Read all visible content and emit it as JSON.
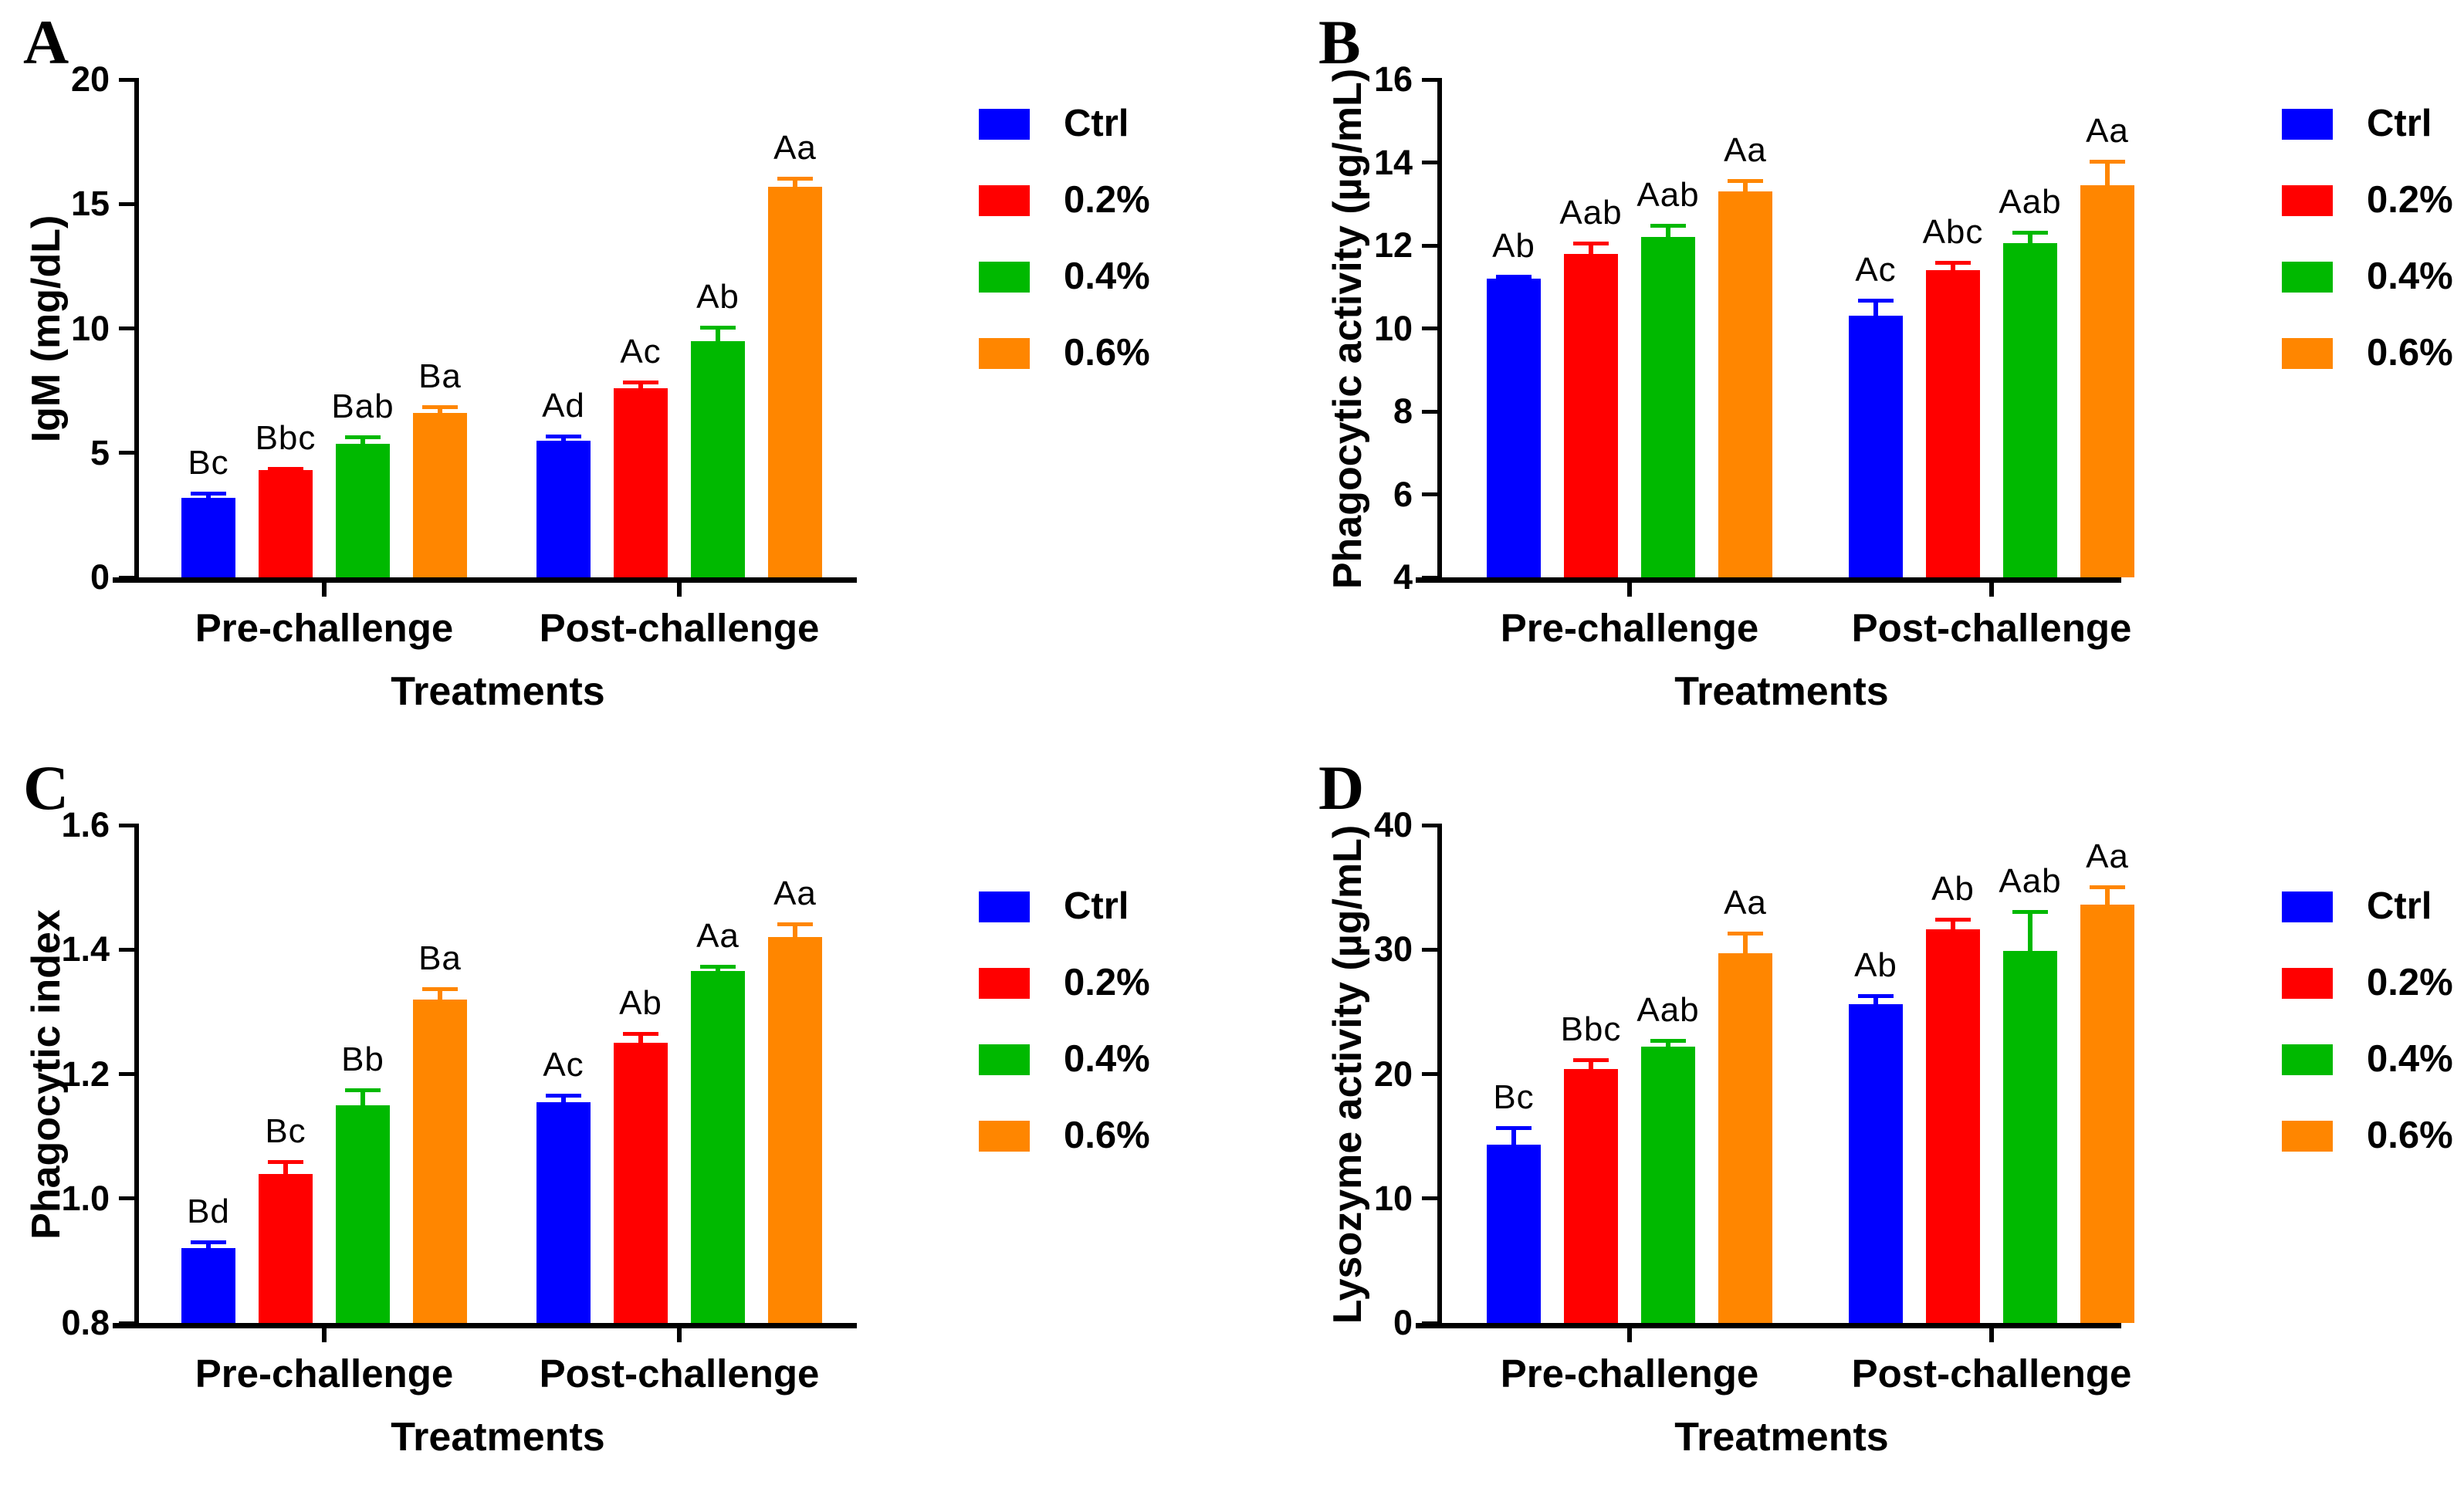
{
  "figure_colors": {
    "ctrl_blue": "#0000FF",
    "pct02_red": "#FF0000",
    "pct04_green": "#00B900",
    "pct06_orange": "#FF8600",
    "axis_black": "#000000"
  },
  "chart_data": [
    {
      "panel": "A",
      "type": "bar",
      "ylabel": "IgM (mg/dL)",
      "xlabel": "Treatments",
      "ylim": [
        0,
        20
      ],
      "yticks": [
        {
          "value": 0,
          "label": "0"
        },
        {
          "value": 5,
          "label": "5"
        },
        {
          "value": 10,
          "label": "10"
        },
        {
          "value": 15,
          "label": "15"
        },
        {
          "value": 20,
          "label": "20"
        }
      ],
      "categories": [
        "Pre-challenge",
        "Post-challenge"
      ],
      "grid": false,
      "legend_position": "right",
      "series": [
        {
          "name": "Ctrl",
          "color": "#0000FF",
          "values": [
            3.2,
            5.5
          ],
          "errors": [
            0.25,
            0.25
          ],
          "sig_labels": [
            "Bc",
            "Ad"
          ]
        },
        {
          "name": "0.2%",
          "color": "#FF0000",
          "values": [
            4.3,
            7.6
          ],
          "errors": [
            0.15,
            0.3
          ],
          "sig_labels": [
            "Bbc",
            "Ac"
          ]
        },
        {
          "name": "0.4%",
          "color": "#00B900",
          "values": [
            5.35,
            9.5
          ],
          "errors": [
            0.35,
            0.6
          ],
          "sig_labels": [
            "Bab",
            "Ab"
          ]
        },
        {
          "name": "0.6%",
          "color": "#FF8600",
          "values": [
            6.6,
            15.7
          ],
          "errors": [
            0.3,
            0.4
          ],
          "sig_labels": [
            "Ba",
            "Aa"
          ]
        }
      ]
    },
    {
      "panel": "B",
      "type": "bar",
      "ylabel": "Phagocytic activity (µg/mL)",
      "xlabel": "Treatments",
      "ylim": [
        4,
        16
      ],
      "yticks": [
        {
          "value": 4,
          "label": "4"
        },
        {
          "value": 6,
          "label": "6"
        },
        {
          "value": 8,
          "label": "8"
        },
        {
          "value": 10,
          "label": "10"
        },
        {
          "value": 12,
          "label": "12"
        },
        {
          "value": 14,
          "label": "14"
        },
        {
          "value": 16,
          "label": "16"
        }
      ],
      "categories": [
        "Pre-challenge",
        "Post-challenge"
      ],
      "grid": false,
      "legend_position": "right",
      "series": [
        {
          "name": "Ctrl",
          "color": "#0000FF",
          "values": [
            11.2,
            10.3
          ],
          "errors": [
            0.1,
            0.42
          ],
          "sig_labels": [
            "Ab",
            "Ac"
          ]
        },
        {
          "name": "0.2%",
          "color": "#FF0000",
          "values": [
            11.8,
            11.4
          ],
          "errors": [
            0.3,
            0.22
          ],
          "sig_labels": [
            "Aab",
            "Abc"
          ]
        },
        {
          "name": "0.4%",
          "color": "#00B900",
          "values": [
            12.2,
            12.05
          ],
          "errors": [
            0.33,
            0.3
          ],
          "sig_labels": [
            "Aab",
            "Aab"
          ]
        },
        {
          "name": "0.6%",
          "color": "#FF8600",
          "values": [
            13.3,
            13.45
          ],
          "errors": [
            0.3,
            0.62
          ],
          "sig_labels": [
            "Aa",
            "Aa"
          ]
        }
      ]
    },
    {
      "panel": "C",
      "type": "bar",
      "ylabel": "Phagocytic index",
      "xlabel": "Treatments",
      "ylim": [
        0.8,
        1.6
      ],
      "yticks": [
        {
          "value": 0.8,
          "label": "0.8"
        },
        {
          "value": 1.0,
          "label": "1.0"
        },
        {
          "value": 1.2,
          "label": "1.2"
        },
        {
          "value": 1.4,
          "label": "1.4"
        },
        {
          "value": 1.6,
          "label": "1.6"
        }
      ],
      "categories": [
        "Pre-challenge",
        "Post-challenge"
      ],
      "grid": false,
      "legend_position": "right",
      "series": [
        {
          "name": "Ctrl",
          "color": "#0000FF",
          "values": [
            0.92,
            1.155
          ],
          "errors": [
            0.013,
            0.013
          ],
          "sig_labels": [
            "Bd",
            "Ac"
          ]
        },
        {
          "name": "0.2%",
          "color": "#FF0000",
          "values": [
            1.04,
            1.25
          ],
          "errors": [
            0.022,
            0.017
          ],
          "sig_labels": [
            "Bc",
            "Ab"
          ]
        },
        {
          "name": "0.4%",
          "color": "#00B900",
          "values": [
            1.15,
            1.365
          ],
          "errors": [
            0.027,
            0.01
          ],
          "sig_labels": [
            "Bb",
            "Aa"
          ]
        },
        {
          "name": "0.6%",
          "color": "#FF8600",
          "values": [
            1.32,
            1.42
          ],
          "errors": [
            0.019,
            0.024
          ],
          "sig_labels": [
            "Ba",
            "Aa"
          ]
        }
      ]
    },
    {
      "panel": "D",
      "type": "bar",
      "ylabel": "Lysozyme activity (µg/mL)",
      "xlabel": "Treatments",
      "ylim": [
        0,
        40
      ],
      "yticks": [
        {
          "value": 0,
          "label": "0"
        },
        {
          "value": 10,
          "label": "10"
        },
        {
          "value": 20,
          "label": "20"
        },
        {
          "value": 30,
          "label": "30"
        },
        {
          "value": 40,
          "label": "40"
        }
      ],
      "categories": [
        "Pre-challenge",
        "Post-challenge"
      ],
      "grid": false,
      "legend_position": "right",
      "series": [
        {
          "name": "Ctrl",
          "color": "#0000FF",
          "values": [
            14.3,
            25.6
          ],
          "errors": [
            1.5,
            0.8
          ],
          "sig_labels": [
            "Bc",
            "Ab"
          ]
        },
        {
          "name": "0.2%",
          "color": "#FF0000",
          "values": [
            20.4,
            31.6
          ],
          "errors": [
            0.85,
            0.95
          ],
          "sig_labels": [
            "Bbc",
            "Ab"
          ]
        },
        {
          "name": "0.4%",
          "color": "#00B900",
          "values": [
            22.2,
            29.9
          ],
          "errors": [
            0.65,
            3.3
          ],
          "sig_labels": [
            "Aab",
            "Aab"
          ]
        },
        {
          "name": "0.6%",
          "color": "#FF8600",
          "values": [
            29.7,
            33.6
          ],
          "errors": [
            1.75,
            1.55
          ],
          "sig_labels": [
            "Aa",
            "Aa"
          ]
        }
      ]
    }
  ]
}
